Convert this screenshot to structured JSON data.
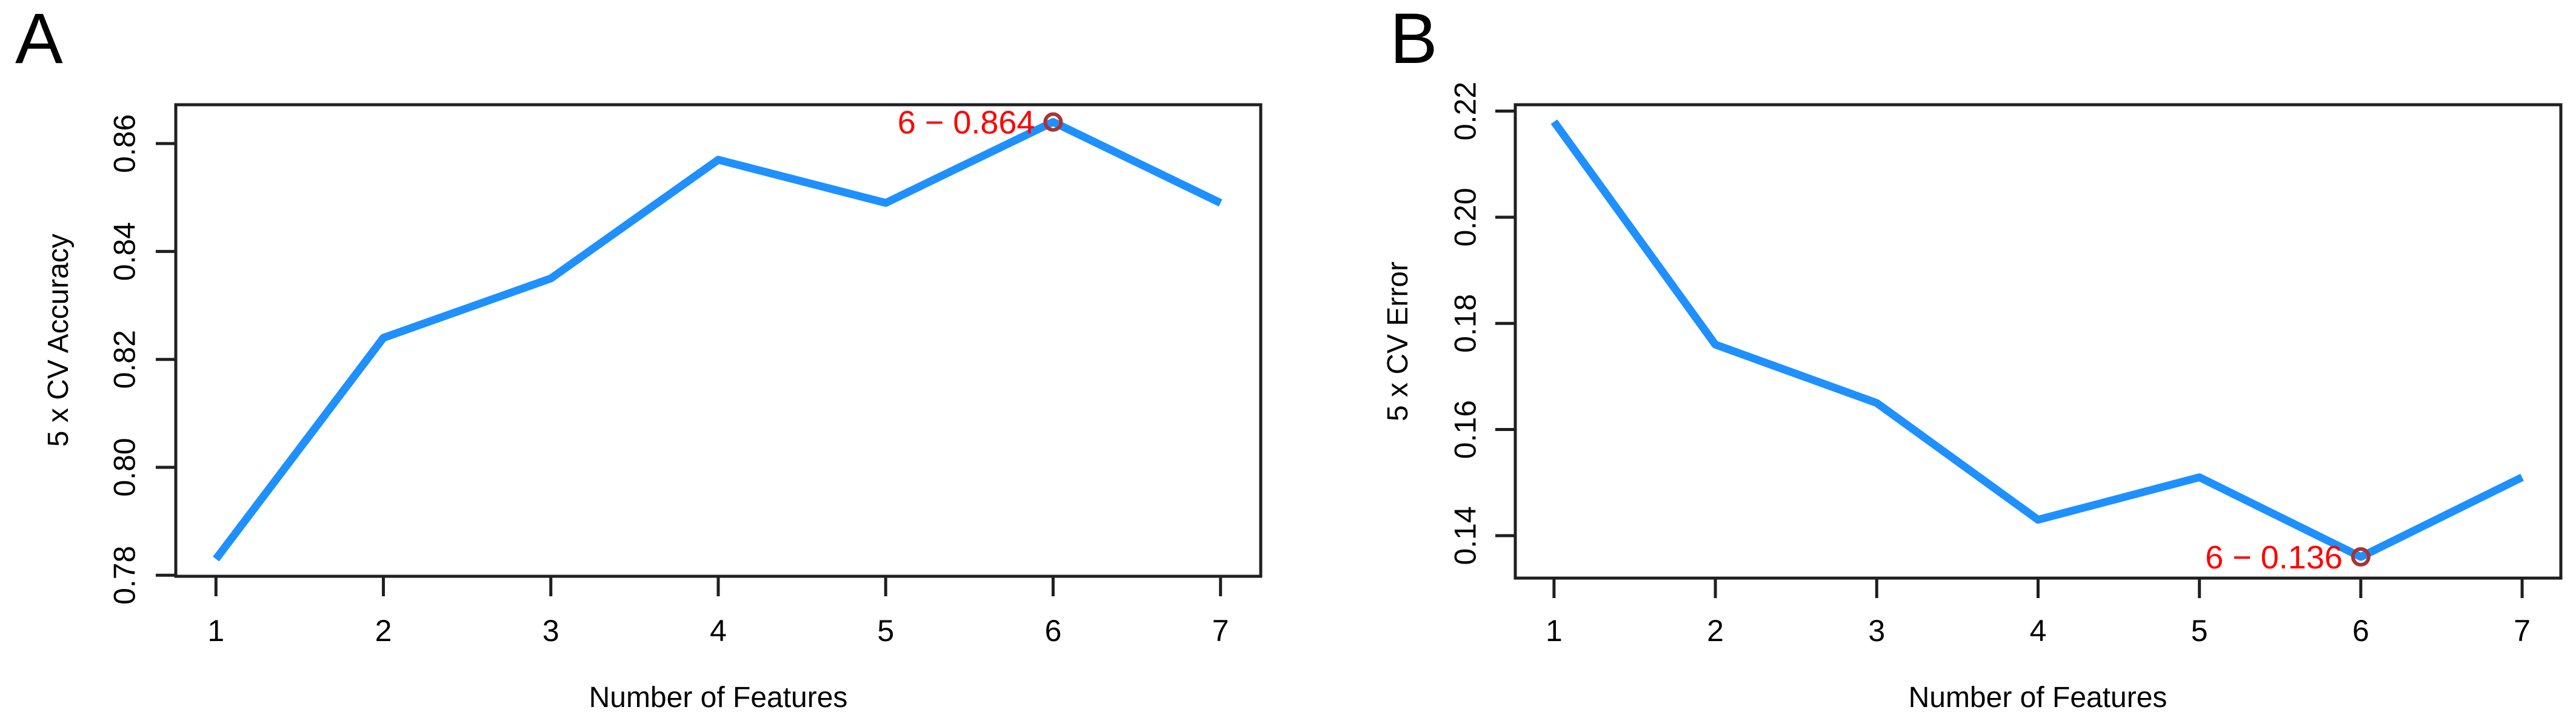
{
  "figure": {
    "background": "#ffffff",
    "axis_color": "#1f1f1f",
    "panel_letters": [
      "A",
      "B"
    ]
  },
  "chart_data": [
    {
      "type": "line",
      "panel_label": "A",
      "title": "",
      "xlabel": "Number of Features",
      "ylabel": "5 x CV Accuracy",
      "x": [
        1,
        2,
        3,
        4,
        5,
        6,
        7
      ],
      "series": [
        {
          "name": "5 x CV Accuracy",
          "values": [
            0.783,
            0.824,
            0.835,
            0.857,
            0.849,
            0.864,
            0.849
          ]
        }
      ],
      "xticks": [
        1,
        2,
        3,
        4,
        5,
        6,
        7
      ],
      "xtick_labels": [
        "1",
        "2",
        "3",
        "4",
        "5",
        "6",
        "7"
      ],
      "yticks": [
        0.78,
        0.8,
        0.82,
        0.84,
        0.86
      ],
      "ytick_labels": [
        "0.78",
        "0.80",
        "0.82",
        "0.84",
        "0.86"
      ],
      "xlim": [
        0.76,
        7.24
      ],
      "ylim": [
        0.7798,
        0.8672
      ],
      "grid": false,
      "legend": "none",
      "line_color": "#1E90FF",
      "annotation": {
        "label": "6 − 0.864",
        "x": 6,
        "y": 0.864,
        "text_color": "#FF0000",
        "marker": "open-circle",
        "marker_color": "#A93434"
      }
    },
    {
      "type": "line",
      "panel_label": "B",
      "title": "",
      "xlabel": "Number of Features",
      "ylabel": "5 x CV Error",
      "x": [
        1,
        2,
        3,
        4,
        5,
        6,
        7
      ],
      "series": [
        {
          "name": "5 x CV Error",
          "values": [
            0.218,
            0.176,
            0.165,
            0.143,
            0.151,
            0.136,
            0.151
          ]
        }
      ],
      "xticks": [
        1,
        2,
        3,
        4,
        5,
        6,
        7
      ],
      "xtick_labels": [
        "1",
        "2",
        "3",
        "4",
        "5",
        "6",
        "7"
      ],
      "yticks": [
        0.14,
        0.16,
        0.18,
        0.2,
        0.22
      ],
      "ytick_labels": [
        "0.14",
        "0.16",
        "0.18",
        "0.20",
        "0.22"
      ],
      "xlim": [
        0.76,
        7.24
      ],
      "ylim": [
        0.132,
        0.2212
      ],
      "grid": false,
      "legend": "none",
      "line_color": "#1E90FF",
      "annotation": {
        "label": "6 − 0.136",
        "x": 6,
        "y": 0.136,
        "text_color": "#FF0000",
        "marker": "open-circle",
        "marker_color": "#A93434"
      }
    }
  ]
}
